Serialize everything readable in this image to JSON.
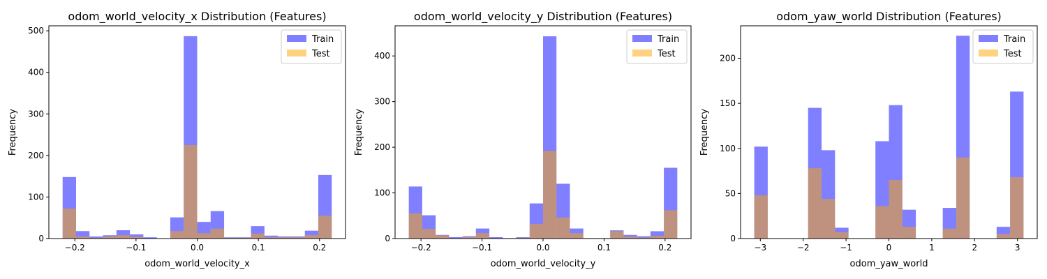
{
  "chart_data": [
    {
      "type": "bar",
      "title": "odom_world_velocity_x Distribution (Features)",
      "xlabel": "odom_world_velocity_x",
      "ylabel": "Frequency",
      "xlim": [
        -0.2425,
        0.2425
      ],
      "ylim": [
        0,
        512
      ],
      "xticks": [
        -0.2,
        -0.1,
        0.0,
        0.1,
        0.2
      ],
      "xtick_labels": [
        "−0.2",
        "−0.1",
        "0.0",
        "0.1",
        "0.2"
      ],
      "yticks": [
        0,
        100,
        200,
        300,
        400,
        500
      ],
      "ytick_labels": [
        "0",
        "100",
        "200",
        "300",
        "400",
        "500"
      ],
      "legend": "top-right",
      "grid": false,
      "bin_edges": [
        -0.22,
        -0.198,
        -0.176,
        -0.154,
        -0.132,
        -0.11,
        -0.088,
        -0.066,
        -0.044,
        -0.022,
        0.0,
        0.022,
        0.044,
        0.066,
        0.088,
        0.11,
        0.132,
        0.154,
        0.176,
        0.198,
        0.22
      ],
      "bin_width": 0.022,
      "series": [
        {
          "name": "Train",
          "color": "#0000ff",
          "alpha": 0.5,
          "values": [
            148,
            18,
            5,
            8,
            20,
            10,
            3,
            0,
            51,
            487,
            40,
            66,
            3,
            3,
            30,
            7,
            5,
            5,
            19,
            153
          ]
        },
        {
          "name": "Test",
          "color": "#ffa500",
          "alpha": 0.5,
          "values": [
            72,
            5,
            2,
            5,
            8,
            4,
            1,
            0,
            18,
            225,
            13,
            24,
            2,
            2,
            12,
            3,
            3,
            3,
            8,
            55
          ]
        }
      ]
    },
    {
      "type": "bar",
      "title": "odom_world_velocity_y Distribution (Features)",
      "xlabel": "odom_world_velocity_y",
      "ylabel": "Frequency",
      "xlim": [
        -0.2425,
        0.2425
      ],
      "ylim": [
        0,
        466
      ],
      "xticks": [
        -0.2,
        -0.1,
        0.0,
        0.1,
        0.2
      ],
      "xtick_labels": [
        "−0.2",
        "−0.1",
        "0.0",
        "0.1",
        "0.2"
      ],
      "yticks": [
        0,
        100,
        200,
        300,
        400
      ],
      "ytick_labels": [
        "0",
        "100",
        "200",
        "300",
        "400"
      ],
      "legend": "top-right",
      "grid": false,
      "bin_edges": [
        -0.22,
        -0.198,
        -0.176,
        -0.154,
        -0.132,
        -0.11,
        -0.088,
        -0.066,
        -0.044,
        -0.022,
        0.0,
        0.022,
        0.044,
        0.066,
        0.088,
        0.11,
        0.132,
        0.154,
        0.176,
        0.198,
        0.22
      ],
      "bin_width": 0.022,
      "series": [
        {
          "name": "Train",
          "color": "#0000ff",
          "alpha": 0.5,
          "values": [
            114,
            51,
            8,
            3,
            5,
            22,
            3,
            1,
            3,
            77,
            443,
            120,
            22,
            1,
            1,
            18,
            8,
            5,
            16,
            155
          ]
        },
        {
          "name": "Test",
          "color": "#ffa500",
          "alpha": 0.5,
          "values": [
            55,
            21,
            7,
            1,
            3,
            12,
            1,
            0,
            2,
            32,
            192,
            46,
            12,
            0,
            0,
            16,
            4,
            2,
            6,
            62
          ]
        }
      ]
    },
    {
      "type": "bar",
      "title": "odom_yaw_world Distribution (Features)",
      "xlabel": "odom_yaw_world",
      "ylabel": "Frequency",
      "xlim": [
        -3.4608,
        3.4608
      ],
      "ylim": [
        0,
        236
      ],
      "xticks": [
        -3,
        -2,
        -1,
        0,
        1,
        2,
        3
      ],
      "xtick_labels": [
        "−3",
        "−2",
        "−1",
        "0",
        "1",
        "2",
        "3"
      ],
      "yticks": [
        0,
        50,
        100,
        150,
        200
      ],
      "ytick_labels": [
        "0",
        "50",
        "100",
        "150",
        "200"
      ],
      "legend": "top-right",
      "grid": false,
      "bin_edges": [
        -3.1416,
        -2.8274,
        -2.5133,
        -2.1991,
        -1.885,
        -1.5708,
        -1.2566,
        -0.9425,
        -0.6283,
        -0.3142,
        0.0,
        0.3142,
        0.6283,
        0.9425,
        1.2566,
        1.5708,
        1.885,
        2.1991,
        2.5133,
        2.8274,
        3.1416
      ],
      "bin_width": 0.31416,
      "series": [
        {
          "name": "Train",
          "color": "#0000ff",
          "alpha": 0.5,
          "values": [
            102,
            0,
            0,
            0,
            145,
            98,
            12,
            0,
            0,
            108,
            148,
            32,
            0,
            0,
            34,
            225,
            0,
            0,
            13,
            163
          ]
        },
        {
          "name": "Test",
          "color": "#ffa500",
          "alpha": 0.5,
          "values": [
            48,
            0,
            0,
            0,
            78,
            44,
            7,
            0,
            0,
            36,
            65,
            13,
            0,
            0,
            11,
            90,
            0,
            0,
            5,
            68
          ]
        }
      ]
    }
  ]
}
